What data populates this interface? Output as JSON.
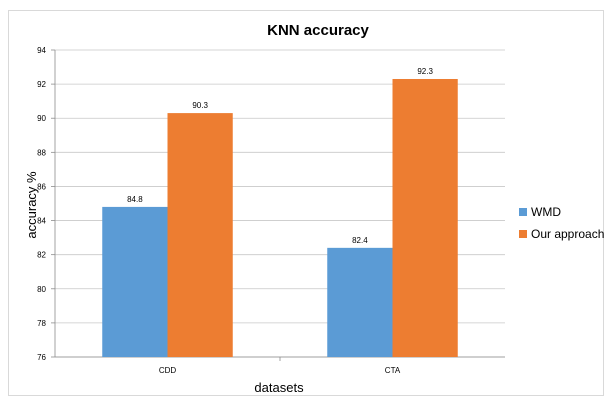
{
  "chart_data": {
    "type": "bar",
    "title": "KNN accuracy",
    "xlabel": "datasets",
    "ylabel": "accuracy %",
    "categories": [
      "CDD",
      "CTA"
    ],
    "series": [
      {
        "name": "WMD",
        "values": [
          84.8,
          82.4
        ],
        "color": "#5b9bd5"
      },
      {
        "name": "Our approach",
        "values": [
          90.3,
          92.3
        ],
        "color": "#ed7d31"
      }
    ],
    "ylim": [
      76,
      94
    ],
    "yticks": [
      "76",
      "78",
      "80",
      "82",
      "84",
      "86",
      "88",
      "90",
      "92",
      "94"
    ],
    "data_labels": [
      [
        "84.8",
        "82.4"
      ],
      [
        "90.3",
        "92.3"
      ]
    ],
    "grid": true,
    "legend": "right"
  }
}
